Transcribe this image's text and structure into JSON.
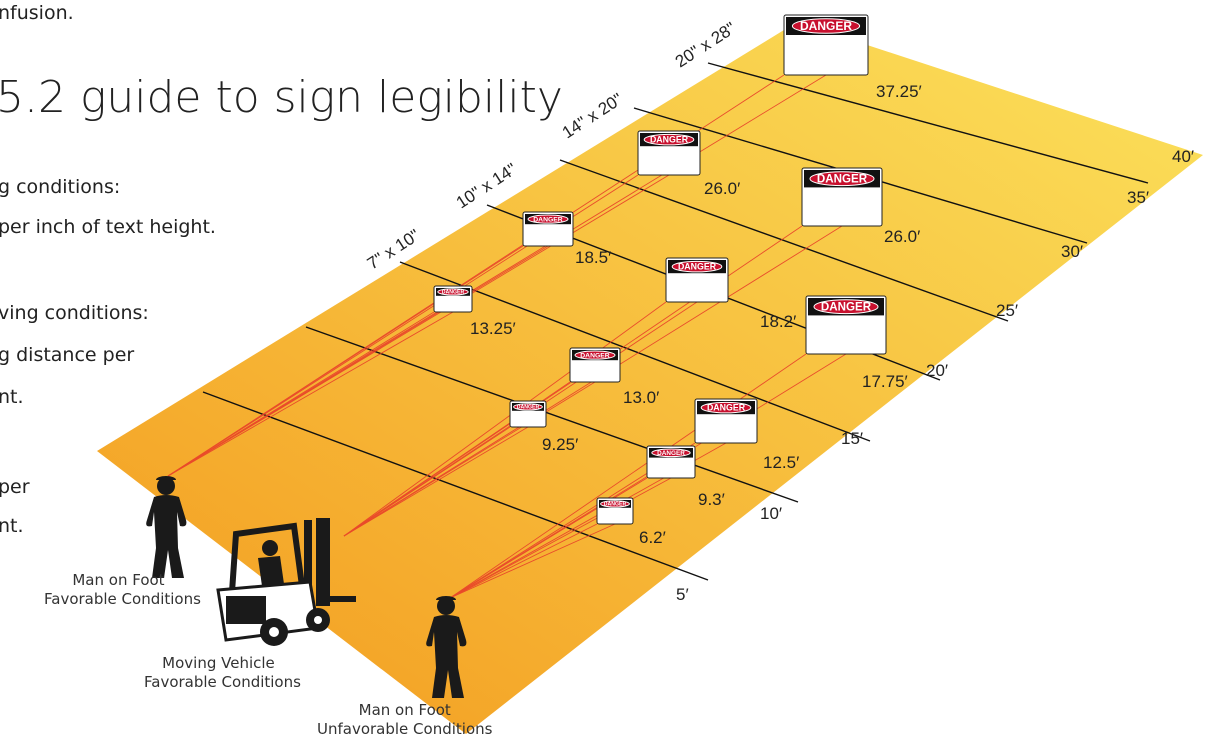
{
  "intro_fragment": "nfusion.",
  "title": "5.2 guide to sign legibility",
  "left_text": [
    "g conditions:",
    "per inch of text height.",
    "ving conditions:",
    "g distance per",
    "nt.",
    "per",
    "nt."
  ],
  "sign_label": "DANGER",
  "sign_sizes": [
    "7\" x 10\"",
    "10\" x 14\"",
    "14\" x 20\"",
    "20\" x 28\""
  ],
  "row_distances": [
    "5′",
    "10′",
    "15′",
    "20′",
    "25′",
    "30′",
    "35′",
    "40′"
  ],
  "sign_distances": [
    "13.25′",
    "18.5′",
    "26.0′",
    "37.25′",
    "9.25′",
    "13.0′",
    "18.2′",
    "26.0′",
    "6.2′",
    "9.3′",
    "12.5′",
    "17.75′"
  ],
  "viewers": [
    {
      "line1": "Man on Foot",
      "line2": "Favorable Conditions"
    },
    {
      "line1": "Moving Vehicle",
      "line2": "Favorable Conditions"
    },
    {
      "line1": "Man on Foot",
      "line2": "Unfavorable Conditions"
    }
  ],
  "colors": {
    "floor_start": "#f39a1e",
    "floor_end": "#fbe25c",
    "ray": "#e8412a",
    "danger_red": "#c8102e",
    "silhouette": "#1a1a1a"
  }
}
